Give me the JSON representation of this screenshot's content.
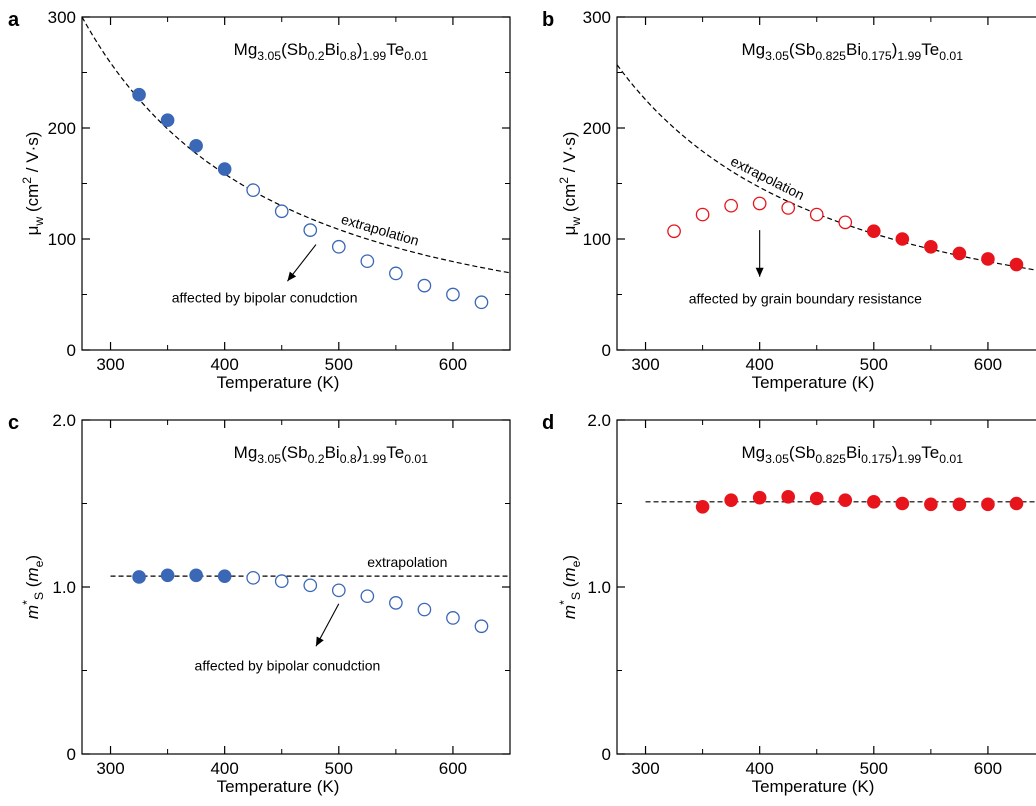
{
  "chart_data": [
    {
      "type": "scatter",
      "panel": "a",
      "formula": {
        "parts": [
          [
            "Mg",
            ""
          ],
          [
            "3.05",
            "sub"
          ],
          [
            "(Sb",
            ""
          ],
          [
            "0.2",
            "sub"
          ],
          [
            "Bi",
            ""
          ],
          [
            "0.8",
            "sub"
          ],
          [
            ")",
            ""
          ],
          [
            "1.99",
            "sub"
          ],
          [
            "Te",
            ""
          ],
          [
            "0.01",
            "sub"
          ]
        ]
      },
      "xlabel": "Temperature (K)",
      "ylabel": {
        "parts": [
          [
            "μ",
            ""
          ],
          [
            "w",
            "sub"
          ],
          [
            " (cm",
            ""
          ],
          [
            "2",
            "sup"
          ],
          [
            " / V·s)",
            ""
          ]
        ]
      },
      "xlim": [
        275,
        650
      ],
      "ylim": [
        0,
        300
      ],
      "xticks": [
        300,
        400,
        500,
        600
      ],
      "yticks": [
        0,
        100,
        200,
        300
      ],
      "yticks_minor": [
        50,
        150,
        250
      ],
      "color": "#3a67b6",
      "filled": {
        "x": [
          325,
          350,
          375,
          400
        ],
        "y": [
          230,
          207,
          184,
          163
        ]
      },
      "open": {
        "x": [
          425,
          450,
          475,
          500,
          525,
          550,
          575,
          600,
          625
        ],
        "y": [
          144,
          125,
          108,
          93,
          80,
          69,
          58,
          50,
          43
        ]
      },
      "fit": {
        "type": "power",
        "ref_x": 275,
        "ref_y": 300,
        "exponent": -1.7
      },
      "fit_label": "extrapolation",
      "fit_label_rotate": true,
      "annotation": "affected by bipolar conudction"
    },
    {
      "type": "scatter",
      "panel": "b",
      "formula": {
        "parts": [
          [
            "Mg",
            ""
          ],
          [
            "3.05",
            "sub"
          ],
          [
            "(Sb",
            ""
          ],
          [
            "0.825",
            "sub"
          ],
          [
            "Bi",
            ""
          ],
          [
            "0.175",
            "sub"
          ],
          [
            ")",
            ""
          ],
          [
            "1.99",
            "sub"
          ],
          [
            "Te",
            ""
          ],
          [
            "0.01",
            "sub"
          ]
        ]
      },
      "xlabel": "Temperature (K)",
      "ylabel": {
        "parts": [
          [
            "μ",
            ""
          ],
          [
            "w",
            "sub"
          ],
          [
            " (cm",
            ""
          ],
          [
            "2",
            "sup"
          ],
          [
            " / V·s)",
            ""
          ]
        ]
      },
      "xlim": [
        275,
        650
      ],
      "ylim": [
        0,
        300
      ],
      "xticks": [
        300,
        400,
        500,
        600
      ],
      "yticks": [
        0,
        100,
        200,
        300
      ],
      "yticks_minor": [
        50,
        150,
        250
      ],
      "color": "#e8141c",
      "filled": {
        "x": [
          500,
          525,
          550,
          575,
          600,
          625
        ],
        "y": [
          107,
          100,
          93,
          87,
          82,
          77
        ]
      },
      "open": {
        "x": [
          325,
          350,
          375,
          400,
          425,
          450,
          475
        ],
        "y": [
          107,
          122,
          130,
          132,
          128,
          122,
          115
        ]
      },
      "fit": {
        "type": "power",
        "ref_x": 275,
        "ref_y": 257,
        "exponent": -1.5
      },
      "fit_label": "extrapolation",
      "fit_label_rotate": true,
      "annotation": "affected by grain boundary resistance"
    },
    {
      "type": "scatter",
      "panel": "c",
      "formula": {
        "parts": [
          [
            "Mg",
            ""
          ],
          [
            "3.05",
            "sub"
          ],
          [
            "(Sb",
            ""
          ],
          [
            "0.2",
            "sub"
          ],
          [
            "Bi",
            ""
          ],
          [
            "0.8",
            "sub"
          ],
          [
            ")",
            ""
          ],
          [
            "1.99",
            "sub"
          ],
          [
            "Te",
            ""
          ],
          [
            "0.01",
            "sub"
          ]
        ]
      },
      "xlabel": "Temperature (K)",
      "ylabel": {
        "parts": [
          [
            "m",
            "it"
          ],
          [
            "*",
            "sup"
          ],
          [
            "S",
            "sub"
          ],
          [
            " (",
            ""
          ],
          [
            "m",
            "it"
          ],
          [
            "e",
            "sub"
          ],
          [
            ")",
            ""
          ]
        ]
      },
      "xlim": [
        275,
        650
      ],
      "ylim": [
        0,
        2.0
      ],
      "xticks": [
        300,
        400,
        500,
        600
      ],
      "yticks": [
        0,
        1.0,
        2.0
      ],
      "ytick_labels": [
        "0",
        "1.0",
        "2.0"
      ],
      "yticks_minor": [
        0.5,
        1.5
      ],
      "color": "#3a67b6",
      "filled": {
        "x": [
          325,
          350,
          375,
          400
        ],
        "y": [
          1.06,
          1.07,
          1.07,
          1.065
        ]
      },
      "open": {
        "x": [
          425,
          450,
          475,
          500,
          525,
          550,
          575,
          600,
          625
        ],
        "y": [
          1.055,
          1.035,
          1.01,
          0.98,
          0.945,
          0.905,
          0.865,
          0.815,
          0.765
        ]
      },
      "fit": {
        "type": "const",
        "x_start": 300,
        "y": 1.065
      },
      "fit_label": "extrapolation",
      "fit_label_rotate": false,
      "annotation": "affected by bipolar conudction"
    },
    {
      "type": "scatter",
      "panel": "d",
      "formula": {
        "parts": [
          [
            "Mg",
            ""
          ],
          [
            "3.05",
            "sub"
          ],
          [
            "(Sb",
            ""
          ],
          [
            "0.825",
            "sub"
          ],
          [
            "Bi",
            ""
          ],
          [
            "0.175",
            "sub"
          ],
          [
            ")",
            ""
          ],
          [
            "1.99",
            "sub"
          ],
          [
            "Te",
            ""
          ],
          [
            "0.01",
            "sub"
          ]
        ]
      },
      "xlabel": "Temperature (K)",
      "ylabel": {
        "parts": [
          [
            "m",
            "it"
          ],
          [
            "*",
            "sup"
          ],
          [
            "S",
            "sub"
          ],
          [
            " (",
            ""
          ],
          [
            "m",
            "it"
          ],
          [
            "e",
            "sub"
          ],
          [
            ")",
            ""
          ]
        ]
      },
      "xlim": [
        275,
        650
      ],
      "ylim": [
        0,
        2.0
      ],
      "xticks": [
        300,
        400,
        500,
        600
      ],
      "yticks": [
        0,
        1.0,
        2.0
      ],
      "ytick_labels": [
        "0",
        "1.0",
        "2.0"
      ],
      "yticks_minor": [
        0.5,
        1.5
      ],
      "color": "#e8141c",
      "filled": {
        "x": [
          350,
          375,
          400,
          425,
          450,
          475,
          500,
          525,
          550,
          575,
          600,
          625
        ],
        "y": [
          1.48,
          1.52,
          1.535,
          1.54,
          1.53,
          1.52,
          1.51,
          1.5,
          1.495,
          1.495,
          1.495,
          1.5
        ]
      },
      "open": {
        "x": [],
        "y": []
      },
      "fit": {
        "type": "const",
        "x_start": 300,
        "y": 1.51
      },
      "fit_label": "",
      "annotation": ""
    }
  ]
}
